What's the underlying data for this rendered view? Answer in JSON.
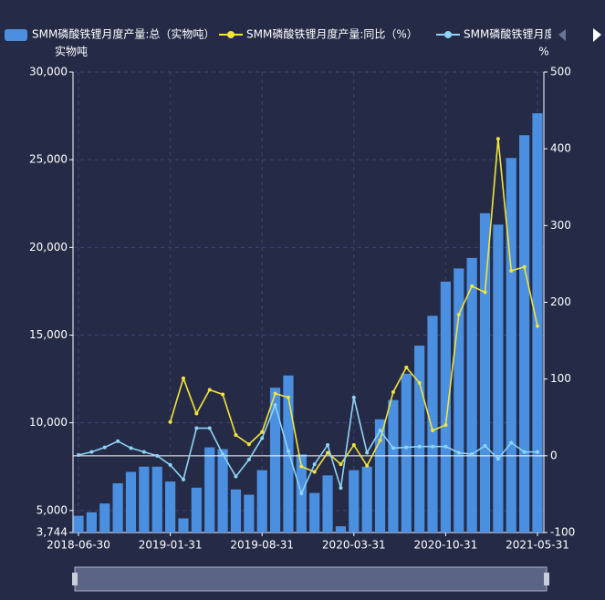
{
  "chart_data": {
    "type": "bar-line",
    "y_unit": "实物吨",
    "y2_unit": "%",
    "categories": [
      "2018-06-30",
      null,
      null,
      null,
      null,
      null,
      null,
      "2019-01-31",
      null,
      null,
      null,
      null,
      null,
      null,
      "2019-08-31",
      null,
      null,
      null,
      null,
      null,
      null,
      "2020-03-31",
      null,
      null,
      null,
      null,
      null,
      null,
      "2020-10-31",
      null,
      null,
      null,
      null,
      null,
      null,
      "2021-05-31"
    ],
    "series": [
      {
        "name": "SMM磷酸铁锂月度产量:总（实物吨）",
        "type": "bar",
        "color": "#4a8fe0",
        "axis": "y",
        "values": [
          4700,
          4900,
          5400,
          6550,
          7200,
          7500,
          7500,
          6650,
          4550,
          6300,
          8600,
          8500,
          6200,
          5900,
          7300,
          12000,
          12700,
          8200,
          6000,
          7000,
          4100,
          7300,
          7500,
          10200,
          11300,
          12800,
          14400,
          16100,
          18050,
          18800,
          19400,
          21950,
          21300,
          25100,
          26400,
          27650
        ]
      },
      {
        "name": "SMM磷酸铁锂月度产量:同比（%）",
        "type": "line",
        "color": "#f2e43a",
        "axis": "y2",
        "values": [
          null,
          null,
          null,
          null,
          null,
          null,
          null,
          44,
          101,
          55,
          86,
          80,
          27,
          15,
          31,
          81,
          76,
          -14,
          -21,
          4,
          -11,
          14,
          -13,
          20,
          83,
          115,
          95,
          33,
          40,
          184,
          221,
          213,
          413,
          241,
          246,
          169
        ]
      },
      {
        "name": "SMM磷酸铁锂月度",
        "type": "line",
        "color": "#8fd3f5",
        "axis": "y2",
        "values": [
          1,
          5,
          11,
          19,
          10,
          5,
          0,
          -12,
          -31,
          36,
          36,
          2,
          -27,
          -5,
          23,
          66,
          6,
          -49,
          -11,
          14,
          -42,
          76,
          4,
          33,
          10,
          11,
          12,
          12,
          12,
          4,
          2,
          13,
          -4,
          17,
          5,
          5
        ]
      }
    ],
    "ylim": [
      3744,
      30000
    ],
    "yticks": [
      {
        "value": 3744,
        "label": "3,744"
      },
      {
        "value": 5000,
        "label": "5,000"
      },
      {
        "value": 10000,
        "label": "10,000"
      },
      {
        "value": 15000,
        "label": "15,000"
      },
      {
        "value": 20000,
        "label": "20,000"
      },
      {
        "value": 25000,
        "label": "25,000"
      },
      {
        "value": 30000,
        "label": "30,000"
      }
    ],
    "y2lim": [
      -100,
      500
    ],
    "y2ticks": [
      -100,
      0,
      100,
      200,
      300,
      400,
      500
    ],
    "grid": true
  }
}
